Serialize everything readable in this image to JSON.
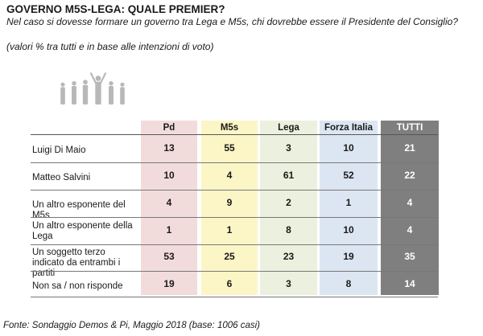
{
  "title": "GOVERNO M5S-LEGA: QUALE PREMIER?",
  "question": "Nel caso si dovesse formare un governo tra Lega e M5s, chi dovrebbe essere il Presidente del Consiglio?",
  "note": "(valori % tra tutti e in base alle intenzioni di voto)",
  "source": "Fonte: Sondaggio Demos & Pi, Maggio 2018 (base: 1006 casi)",
  "colors": {
    "pd": "#f2dcdb",
    "m5s": "#fcf6c6",
    "lega": "#ebf1de",
    "fi": "#dce6f2",
    "tutti": "#7f7f7f",
    "icon": "#b8b8b8"
  },
  "icon_name": "people-group-icon",
  "chart_data": {
    "type": "table",
    "columns": [
      "Pd",
      "M5s",
      "Lega",
      "Forza Italia",
      "TUTTI"
    ],
    "rows": [
      {
        "label": "Luigi Di Maio",
        "values": [
          13,
          55,
          3,
          10,
          21
        ]
      },
      {
        "label": "Matteo Salvini",
        "values": [
          10,
          4,
          61,
          52,
          22
        ]
      },
      {
        "label": "Un altro esponente del M5s",
        "values": [
          4,
          9,
          2,
          1,
          4
        ]
      },
      {
        "label": "Un altro esponente della Lega",
        "values": [
          1,
          1,
          8,
          10,
          4
        ]
      },
      {
        "label": "Un soggetto terzo indicato da entrambi i partiti",
        "values": [
          53,
          25,
          23,
          19,
          35
        ]
      },
      {
        "label": "Non sa / non risponde",
        "values": [
          19,
          6,
          3,
          8,
          14
        ]
      }
    ]
  }
}
